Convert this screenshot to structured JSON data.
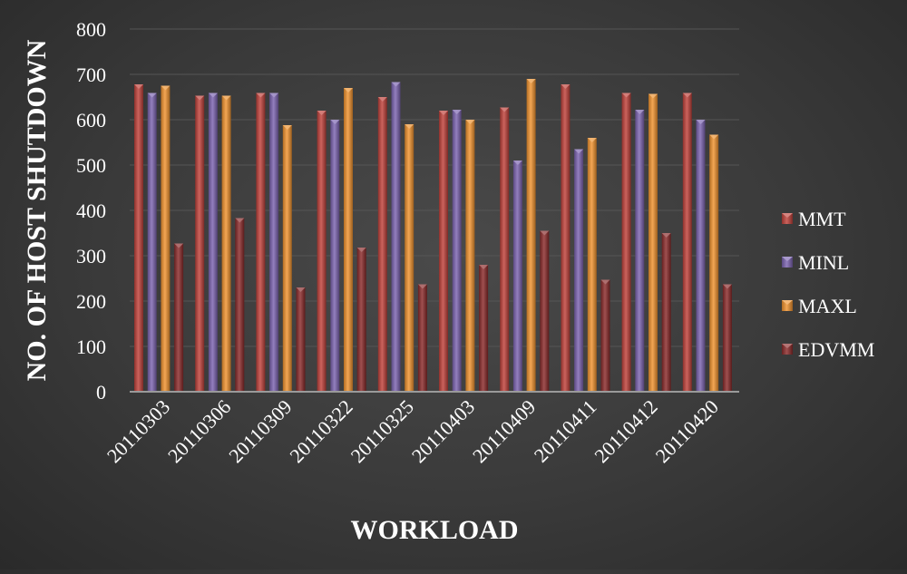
{
  "chart_data": {
    "type": "bar",
    "xlabel": "WORKLOAD",
    "ylabel": "NO. OF HOST SHUTDOWN",
    "ylim": [
      0,
      800
    ],
    "yticks": [
      0,
      100,
      200,
      300,
      400,
      500,
      600,
      700,
      800
    ],
    "grid": true,
    "legend": "right",
    "categories": [
      "20110303",
      "20110306",
      "20110309",
      "20110322",
      "20110325",
      "20110403",
      "20110409",
      "20110411",
      "20110412",
      "20110420"
    ],
    "series": [
      {
        "name": "MMT",
        "color": "#c0413a",
        "values": [
          678,
          653,
          659,
          620,
          650,
          620,
          627,
          678,
          659,
          659
        ]
      },
      {
        "name": "MINL",
        "color": "#7b63b0",
        "values": [
          659,
          659,
          659,
          600,
          683,
          622,
          510,
          535,
          622,
          600
        ]
      },
      {
        "name": "MAXL",
        "color": "#f0922e",
        "values": [
          675,
          653,
          588,
          670,
          590,
          600,
          690,
          560,
          657,
          567
        ]
      },
      {
        "name": "EDVMM",
        "color": "#8a2a2a",
        "values": [
          327,
          383,
          230,
          318,
          237,
          280,
          355,
          247,
          350,
          237
        ]
      }
    ]
  }
}
